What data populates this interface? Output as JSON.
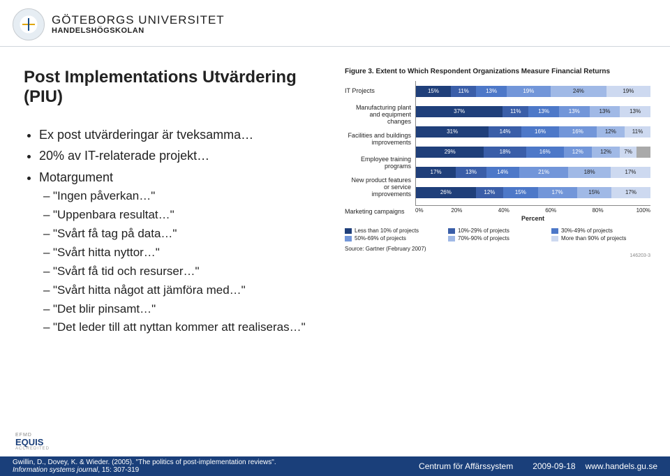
{
  "header": {
    "university": "GÖTEBORGS UNIVERSITET",
    "school": "HANDELSHÖGSKOLAN"
  },
  "slide": {
    "title": "Post Implementations Utvärdering (PIU)",
    "bullets": {
      "b1": "Ex post utvärderingar är tveksamma…",
      "b2": "20% av IT-relaterade projekt…",
      "b3": "Motargument"
    },
    "sub": {
      "s1": "\"Ingen påverkan…\"",
      "s2": "\"Uppenbara resultat…\"",
      "s3": "\"Svårt få tag på data…\"",
      "s4": "\"Svårt hitta nyttor…\"",
      "s5": "\"Svårt få tid och resurser…\"",
      "s6": "\"Svårt hitta något att jämföra med…\"",
      "s7": "\"Det blir pinsamt…\"",
      "s8": "\"Det leder till att nyttan kommer att realiseras…\""
    }
  },
  "chart": {
    "caption": "Figure 3. Extent to Which Respondent Organizations Measure Financial Returns",
    "type": "stacked-bar-horizontal",
    "x_label": "Percent",
    "xlim": [
      0,
      100
    ],
    "x_ticks": [
      "0%",
      "20%",
      "40%",
      "60%",
      "80%",
      "100%"
    ],
    "colors": [
      "#1f3f7a",
      "#3a5ea8",
      "#4d78c8",
      "#7296d9",
      "#a0b9e6",
      "#cdd9f0"
    ],
    "categories": [
      {
        "label": "IT Projects",
        "values": [
          15,
          11,
          13,
          19,
          24,
          19
        ],
        "na": 0
      },
      {
        "label": "Manufacturing plant and equipment changes",
        "values": [
          37,
          11,
          13,
          13,
          13,
          13
        ],
        "na": 0
      },
      {
        "label": "Facilities and buildings improvements",
        "values": [
          31,
          14,
          16,
          16,
          12,
          11
        ],
        "na": 0
      },
      {
        "label": "Employee training programs",
        "values": [
          29,
          18,
          16,
          12,
          12,
          7
        ],
        "na": 6
      },
      {
        "label": "New product features or service improvements",
        "values": [
          17,
          13,
          14,
          21,
          18,
          17
        ],
        "na": 0
      },
      {
        "label": "Marketing campaigns",
        "values": [
          26,
          12,
          15,
          17,
          15,
          17
        ],
        "na": 0
      }
    ],
    "legend": [
      "Less than 10% of projects",
      "10%-29% of projects",
      "30%-49% of projects",
      "50%-69% of projects",
      "70%-90% of projects",
      "More than 90% of projects"
    ],
    "source": "Source: Gartner (February 2007)",
    "chart_id": "146203-3"
  },
  "accreditation": {
    "efmd": "EFMD",
    "equis": "EQUIS",
    "acc": "ACCREDITED"
  },
  "footer": {
    "citation_line1": "Gwillin, D., Dovey, K. & Wieder. (2005). \"The politics of post-implementation reviews\".",
    "citation_line2_a": "Information systems journal",
    "citation_line2_b": ", 15: 307-319",
    "center": "Centrum för Affärssystem",
    "date": "2009-09-18",
    "url": "www.handels.gu.se"
  }
}
